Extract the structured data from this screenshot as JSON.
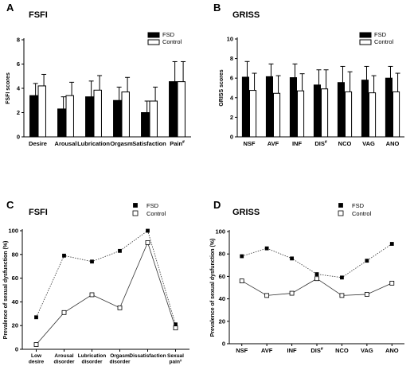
{
  "chart_data": [
    {
      "panel": "A",
      "title": "FSFI",
      "type": "bar",
      "ylabel": "FSFI scores",
      "ylim": [
        0,
        8
      ],
      "yticks": [
        0,
        2,
        4,
        6,
        8
      ],
      "categories": [
        "Desire",
        "Arousal",
        "Lubrication",
        "Orgasm",
        "Satisfaction",
        "Pain#"
      ],
      "series": [
        {
          "name": "FSD",
          "color": "#000000",
          "values": [
            3.4,
            2.3,
            3.3,
            3.0,
            2.0,
            4.55
          ],
          "errors": [
            1.0,
            1.0,
            1.3,
            1.1,
            0.95,
            1.65
          ]
        },
        {
          "name": "Control",
          "color": "#ffffff",
          "values": [
            4.2,
            3.4,
            3.85,
            3.7,
            2.95,
            4.55
          ],
          "errors": [
            0.95,
            1.1,
            1.2,
            1.2,
            1.15,
            1.65
          ]
        }
      ],
      "legend": "top-right"
    },
    {
      "panel": "B",
      "title": "GRISS",
      "type": "bar",
      "ylabel": "GRISS scores",
      "ylim": [
        0,
        10
      ],
      "yticks": [
        0,
        2,
        4,
        6,
        8,
        10
      ],
      "categories": [
        "NSF",
        "AVF",
        "INF",
        "DIS#",
        "NCO",
        "VAG",
        "ANO"
      ],
      "series": [
        {
          "name": "FSD",
          "color": "#000000",
          "values": [
            6.1,
            6.15,
            6.05,
            5.3,
            5.55,
            5.8,
            6.0
          ],
          "errors": [
            1.6,
            1.3,
            1.4,
            1.55,
            1.65,
            1.4,
            1.2
          ]
        },
        {
          "name": "Control",
          "color": "#ffffff",
          "values": [
            4.75,
            4.45,
            4.7,
            4.9,
            4.6,
            4.5,
            4.6
          ],
          "errors": [
            1.75,
            1.8,
            1.75,
            1.95,
            2.05,
            1.75,
            1.9
          ]
        }
      ],
      "legend": "top-right"
    },
    {
      "panel": "C",
      "title": "FSFI",
      "type": "line",
      "ylabel": "Prevalence of sexual dysfunction (%)",
      "ylim": [
        0,
        100
      ],
      "yticks": [
        0,
        20,
        40,
        60,
        80,
        100
      ],
      "categories": [
        "Low desire",
        "Arousal disorder",
        "Lubrication disorder",
        "Orgasm disorder",
        "Dissatisfaction",
        "Sexual pain#"
      ],
      "series": [
        {
          "name": "FSD",
          "marker": "filled-square",
          "line": "dotted",
          "values": [
            27,
            79,
            74,
            83,
            100,
            21
          ]
        },
        {
          "name": "Control",
          "marker": "open-square",
          "line": "solid",
          "values": [
            4,
            31,
            46,
            35,
            90,
            18
          ]
        }
      ],
      "legend": "top-right"
    },
    {
      "panel": "D",
      "title": "GRISS",
      "type": "line",
      "ylabel": "Prevalence of sexual dysfunction (%)",
      "ylim": [
        0,
        100
      ],
      "yticks": [
        0,
        20,
        40,
        60,
        80,
        100
      ],
      "categories": [
        "NSF",
        "AVF",
        "INF",
        "DIS#",
        "NCO",
        "VAG",
        "ANO"
      ],
      "series": [
        {
          "name": "FSD",
          "marker": "filled-square",
          "line": "dotted",
          "values": [
            78,
            85,
            76,
            62,
            59,
            74,
            89
          ]
        },
        {
          "name": "Control",
          "marker": "open-square",
          "line": "solid",
          "values": [
            56,
            43,
            45,
            58,
            43,
            44,
            54
          ]
        }
      ],
      "legend": "top-right"
    }
  ]
}
